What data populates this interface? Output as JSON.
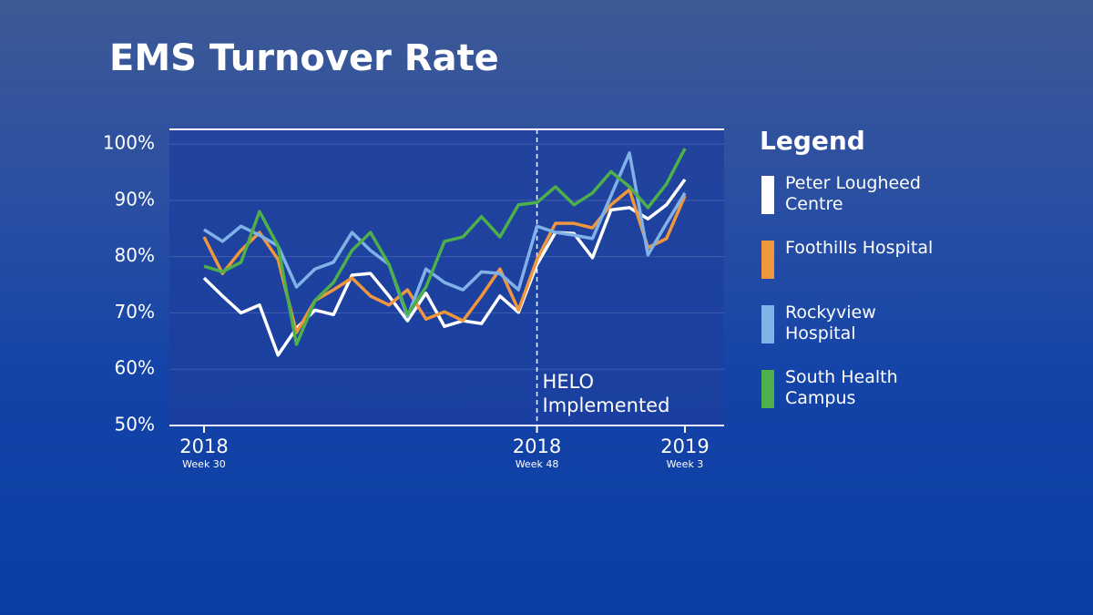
{
  "chart_data": {
    "type": "line",
    "title": "EMS Turnover Rate",
    "legend_title": "Legend",
    "categories": [
      {
        "year": "2018",
        "week": "Week 30"
      },
      null,
      null,
      null,
      null,
      null,
      null,
      null,
      null,
      null,
      null,
      null,
      null,
      null,
      null,
      null,
      null,
      null,
      {
        "year": "2018",
        "week": "Week 48"
      },
      null,
      null,
      null,
      null,
      null,
      null,
      null,
      {
        "year": "2019",
        "week": "Week 3"
      }
    ],
    "series": [
      {
        "name": "Peter Lougheed Centre",
        "color": "#ffffff",
        "values": [
          76.2,
          73,
          70,
          71.4,
          62.5,
          67.3,
          70.5,
          69.7,
          76.7,
          77,
          73,
          68.6,
          73.5,
          67.6,
          68.6,
          68.1,
          73,
          70.1,
          78.6,
          84.3,
          84.1,
          79.8,
          88.3,
          88.7,
          86.7,
          89.2,
          93.7
        ]
      },
      {
        "name": "Foothills Hospital",
        "color": "#f0963c",
        "values": [
          83.5,
          77,
          81.1,
          84.3,
          79.5,
          66.5,
          72.2,
          74.1,
          76.2,
          73,
          71.4,
          74.1,
          68.9,
          70.2,
          68.6,
          73,
          77.8,
          70.5,
          79.5,
          85.9,
          85.9,
          85.1,
          89.2,
          91.9,
          81.6,
          83.2,
          90.8
        ]
      },
      {
        "name": "Rockyview Hospital",
        "color": "#80b2e8",
        "values": [
          84.8,
          82.7,
          85.4,
          83.8,
          81.9,
          74.6,
          77.8,
          79,
          84.3,
          81.1,
          78.6,
          69.3,
          77.8,
          75.4,
          74.1,
          77.3,
          77,
          74.1,
          85.4,
          84.3,
          83.8,
          83.2,
          90.8,
          98.4,
          80.3,
          85.9,
          91.3
        ]
      },
      {
        "name": "South Health Campus",
        "color": "#4db04a",
        "values": [
          78.3,
          77.3,
          79,
          88,
          81.9,
          64.4,
          72.2,
          75.4,
          81.1,
          84.3,
          78.6,
          69.7,
          74.6,
          82.7,
          83.5,
          87.1,
          83.5,
          89.2,
          89.6,
          92.4,
          89.2,
          91.3,
          95.1,
          92.4,
          88.7,
          92.9,
          99.2
        ]
      }
    ],
    "annotation": {
      "lines": [
        "HELO",
        "Implemented"
      ],
      "category": 18
    },
    "ylim": [
      50,
      102.6
    ],
    "yticks": [
      {
        "value": 50,
        "label": "50%"
      },
      {
        "value": 60,
        "label": "60%"
      },
      {
        "value": 70,
        "label": "70%"
      },
      {
        "value": 80,
        "label": "80%"
      },
      {
        "value": 90,
        "label": "90%"
      },
      {
        "value": 100,
        "label": "100%"
      }
    ],
    "grid": true
  }
}
